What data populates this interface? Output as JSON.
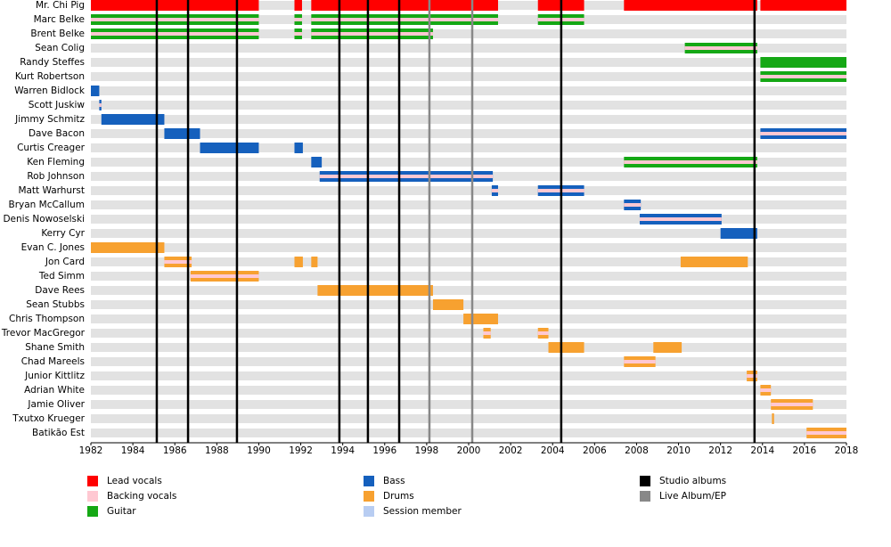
{
  "chart_data": {
    "type": "timeline",
    "xlim": [
      1982,
      2018
    ],
    "xticks": [
      1982,
      1984,
      1986,
      1988,
      1990,
      1992,
      1994,
      1996,
      1998,
      2000,
      2002,
      2004,
      2006,
      2008,
      2010,
      2012,
      2014,
      2016,
      2018
    ],
    "roles": [
      {
        "name": "Lead vocals",
        "color": "#ff0000"
      },
      {
        "name": "Backing vocals",
        "color": "#ffc8d2"
      },
      {
        "name": "Guitar",
        "color": "#15a815"
      },
      {
        "name": "Bass",
        "color": "#1560bd"
      },
      {
        "name": "Drums",
        "color": "#f7a130"
      },
      {
        "name": "Session member",
        "color": "#b8cdf2"
      }
    ],
    "albums": [
      {
        "name": "Studio albums",
        "color": "#000000",
        "x": [
          1985.14,
          1986.63,
          1988.96,
          1993.84,
          1995.2,
          1996.69,
          2004.41,
          2013.62
        ]
      },
      {
        "name": "Live Album/EP",
        "color": "#888888",
        "x": [
          1998.13,
          2000.17
        ]
      }
    ],
    "rows": [
      {
        "name": "Mr. Chi Pig",
        "periods": [
          {
            "roles": [
              "Lead vocals"
            ],
            "start": 1982,
            "end": 1990
          },
          {
            "roles": [
              "Lead vocals"
            ],
            "start": 1991.7,
            "end": 1992.06
          },
          {
            "roles": [
              "Lead vocals"
            ],
            "start": 1992.5,
            "end": 2001.4
          },
          {
            "roles": [
              "Lead vocals"
            ],
            "start": 2003.3,
            "end": 2005.5
          },
          {
            "roles": [
              "Lead vocals"
            ],
            "start": 2007.4,
            "end": 2013.75
          },
          {
            "roles": [
              "Lead vocals"
            ],
            "start": 2013.9,
            "end": 2018
          }
        ]
      },
      {
        "name": "Marc Belke",
        "periods": [
          {
            "roles": [
              "Guitar",
              "Backing vocals"
            ],
            "start": 1982,
            "end": 1990
          },
          {
            "roles": [
              "Guitar",
              "Backing vocals"
            ],
            "start": 1991.7,
            "end": 1992.06
          },
          {
            "roles": [
              "Guitar",
              "Backing vocals"
            ],
            "start": 1992.5,
            "end": 2001.4
          },
          {
            "roles": [
              "Guitar",
              "Backing vocals"
            ],
            "start": 2003.3,
            "end": 2005.5
          }
        ]
      },
      {
        "name": "Brent Belke",
        "periods": [
          {
            "roles": [
              "Guitar",
              "Backing vocals"
            ],
            "start": 1982,
            "end": 1990
          },
          {
            "roles": [
              "Guitar",
              "Backing vocals"
            ],
            "start": 1991.7,
            "end": 1992.06
          },
          {
            "roles": [
              "Guitar",
              "Backing vocals"
            ],
            "start": 1992.5,
            "end": 1998.3
          }
        ]
      },
      {
        "name": "Sean Colig",
        "periods": [
          {
            "roles": [
              "Guitar",
              "Backing vocals"
            ],
            "start": 2010.3,
            "end": 2013.75
          }
        ]
      },
      {
        "name": "Randy Steffes",
        "periods": [
          {
            "roles": [
              "Guitar"
            ],
            "start": 2013.9,
            "end": 2018
          }
        ]
      },
      {
        "name": "Kurt Robertson",
        "periods": [
          {
            "roles": [
              "Guitar",
              "Backing vocals"
            ],
            "start": 2013.9,
            "end": 2018
          }
        ]
      },
      {
        "name": "Warren Bidlock",
        "periods": [
          {
            "roles": [
              "Bass"
            ],
            "start": 1982,
            "end": 1982.4
          }
        ]
      },
      {
        "name": "Scott Juskiw",
        "periods": [
          {
            "roles": [
              "Bass",
              "Backing vocals"
            ],
            "start": 1982.4,
            "end": 1982.5
          }
        ]
      },
      {
        "name": "Jimmy Schmitz",
        "periods": [
          {
            "roles": [
              "Bass"
            ],
            "start": 1982.5,
            "end": 1985.5
          }
        ]
      },
      {
        "name": "Dave Bacon",
        "periods": [
          {
            "roles": [
              "Bass"
            ],
            "start": 1985.5,
            "end": 1987.2
          },
          {
            "roles": [
              "Bass",
              "Backing vocals"
            ],
            "start": 2013.9,
            "end": 2018
          }
        ]
      },
      {
        "name": "Curtis Creager",
        "periods": [
          {
            "roles": [
              "Bass"
            ],
            "start": 1987.2,
            "end": 1990
          },
          {
            "roles": [
              "Bass"
            ],
            "start": 1991.7,
            "end": 1992.1
          }
        ]
      },
      {
        "name": "Ken Fleming",
        "periods": [
          {
            "roles": [
              "Bass"
            ],
            "start": 1992.5,
            "end": 1993
          },
          {
            "roles": [
              "Guitar",
              "Backing vocals"
            ],
            "start": 2007.4,
            "end": 2013.75
          }
        ]
      },
      {
        "name": "Rob Johnson",
        "periods": [
          {
            "roles": [
              "Bass",
              "Backing vocals"
            ],
            "start": 1992.9,
            "end": 2001.15
          }
        ]
      },
      {
        "name": "Matt Warhurst",
        "periods": [
          {
            "roles": [
              "Bass",
              "Backing vocals"
            ],
            "start": 2001.1,
            "end": 2001.4
          },
          {
            "roles": [
              "Bass",
              "Backing vocals"
            ],
            "start": 2003.3,
            "end": 2005.5
          }
        ]
      },
      {
        "name": "Bryan McCallum",
        "periods": [
          {
            "roles": [
              "Bass",
              "Backing vocals"
            ],
            "start": 2007.4,
            "end": 2008.2
          }
        ]
      },
      {
        "name": "Denis Nowoselski",
        "periods": [
          {
            "roles": [
              "Bass",
              "Backing vocals"
            ],
            "start": 2008.15,
            "end": 2012.05
          }
        ]
      },
      {
        "name": "Kerry Cyr",
        "periods": [
          {
            "roles": [
              "Bass"
            ],
            "start": 2012,
            "end": 2013.75
          }
        ]
      },
      {
        "name": "Evan C. Jones",
        "periods": [
          {
            "roles": [
              "Drums"
            ],
            "start": 1982,
            "end": 1985.5
          }
        ]
      },
      {
        "name": "Jon Card",
        "periods": [
          {
            "roles": [
              "Drums",
              "Backing vocals"
            ],
            "start": 1985.5,
            "end": 1986.8
          },
          {
            "roles": [
              "Drums"
            ],
            "start": 1991.7,
            "end": 1992.1
          },
          {
            "roles": [
              "Drums"
            ],
            "start": 1992.5,
            "end": 1992.8
          },
          {
            "roles": [
              "Drums"
            ],
            "start": 2010.1,
            "end": 2013.3
          }
        ]
      },
      {
        "name": "Ted Simm",
        "periods": [
          {
            "roles": [
              "Drums",
              "Backing vocals"
            ],
            "start": 1986.75,
            "end": 1990
          }
        ]
      },
      {
        "name": "Dave Rees",
        "periods": [
          {
            "roles": [
              "Drums"
            ],
            "start": 1992.8,
            "end": 1998.3
          }
        ]
      },
      {
        "name": "Sean Stubbs",
        "periods": [
          {
            "roles": [
              "Drums"
            ],
            "start": 1998.3,
            "end": 1999.75
          }
        ]
      },
      {
        "name": "Chris Thompson",
        "periods": [
          {
            "roles": [
              "Drums"
            ],
            "start": 1999.75,
            "end": 2001.4
          }
        ]
      },
      {
        "name": "Trevor MacGregor",
        "periods": [
          {
            "roles": [
              "Drums",
              "Backing vocals"
            ],
            "start": 2000.7,
            "end": 2001.05
          },
          {
            "roles": [
              "Drums",
              "Backing vocals"
            ],
            "start": 2003.3,
            "end": 2003.8
          }
        ]
      },
      {
        "name": "Shane Smith",
        "periods": [
          {
            "roles": [
              "Drums"
            ],
            "start": 2003.8,
            "end": 2005.5
          },
          {
            "roles": [
              "Drums"
            ],
            "start": 2008.8,
            "end": 2010.15
          }
        ]
      },
      {
        "name": "Chad Mareels",
        "periods": [
          {
            "roles": [
              "Drums",
              "Backing vocals"
            ],
            "start": 2007.4,
            "end": 2008.9
          }
        ]
      },
      {
        "name": "Junior Kittlitz",
        "periods": [
          {
            "roles": [
              "Drums",
              "Backing vocals"
            ],
            "start": 2013.25,
            "end": 2013.75
          }
        ]
      },
      {
        "name": "Adrian White",
        "periods": [
          {
            "roles": [
              "Drums",
              "Backing vocals"
            ],
            "start": 2013.9,
            "end": 2014.4
          }
        ]
      },
      {
        "name": "Jamie Oliver",
        "periods": [
          {
            "roles": [
              "Drums",
              "Backing vocals"
            ],
            "start": 2014.4,
            "end": 2016.4
          }
        ]
      },
      {
        "name": "Txutxo Krueger",
        "periods": [
          {
            "roles": [
              "Drums"
            ],
            "start": 2014.45,
            "end": 2014.55
          }
        ]
      },
      {
        "name": "Batikão Est",
        "periods": [
          {
            "roles": [
              "Drums",
              "Backing vocals"
            ],
            "start": 2016.1,
            "end": 2018
          }
        ]
      }
    ]
  }
}
